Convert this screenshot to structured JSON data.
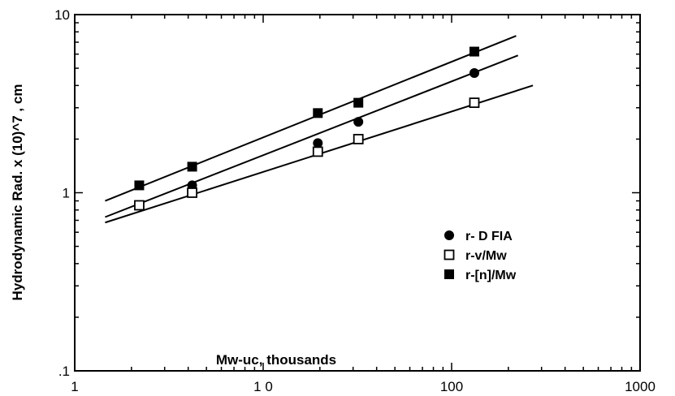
{
  "chart_data": {
    "type": "scatter",
    "x_scale": "log",
    "y_scale": "log",
    "xlim": [
      1,
      1000
    ],
    "ylim": [
      0.1,
      10
    ],
    "xlabel": "Mw-uc,  thousands",
    "ylabel": "Hydrodynamic  Rad.  x  (10)^7  ,  cm",
    "x_ticks": [
      {
        "value": 1,
        "label": "1"
      },
      {
        "value": 10,
        "label": "1 0"
      },
      {
        "value": 100,
        "label": "100"
      },
      {
        "value": 1000,
        "label": "1000"
      }
    ],
    "y_ticks": [
      {
        "value": 0.1,
        "label": ".1"
      },
      {
        "value": 1,
        "label": "1"
      },
      {
        "value": 10,
        "label": "10"
      }
    ],
    "grid": false,
    "legend_position": "center-right",
    "series": [
      {
        "name": "r- D FIA",
        "marker": "filled-circle",
        "color": "#000000",
        "points": [
          [
            4.2,
            1.1
          ],
          [
            19.5,
            1.9
          ],
          [
            32,
            2.5
          ],
          [
            132,
            4.7
          ]
        ],
        "fit_line": [
          [
            1.45,
            0.73
          ],
          [
            225,
            5.9
          ]
        ]
      },
      {
        "name": "r-v/Mw",
        "marker": "open-square",
        "color": "#000000",
        "points": [
          [
            2.2,
            0.85
          ],
          [
            4.2,
            1.0
          ],
          [
            19.5,
            1.7
          ],
          [
            32,
            2.0
          ],
          [
            132,
            3.2
          ]
        ],
        "fit_line": [
          [
            1.45,
            0.68
          ],
          [
            270,
            4.0
          ]
        ]
      },
      {
        "name": "r-[n]/Mw",
        "marker": "filled-square",
        "color": "#000000",
        "points": [
          [
            2.2,
            1.1
          ],
          [
            4.2,
            1.4
          ],
          [
            19.5,
            2.8
          ],
          [
            32,
            3.2
          ],
          [
            132,
            6.2
          ]
        ],
        "fit_line": [
          [
            1.45,
            0.9
          ],
          [
            220,
            7.6
          ]
        ]
      }
    ]
  }
}
